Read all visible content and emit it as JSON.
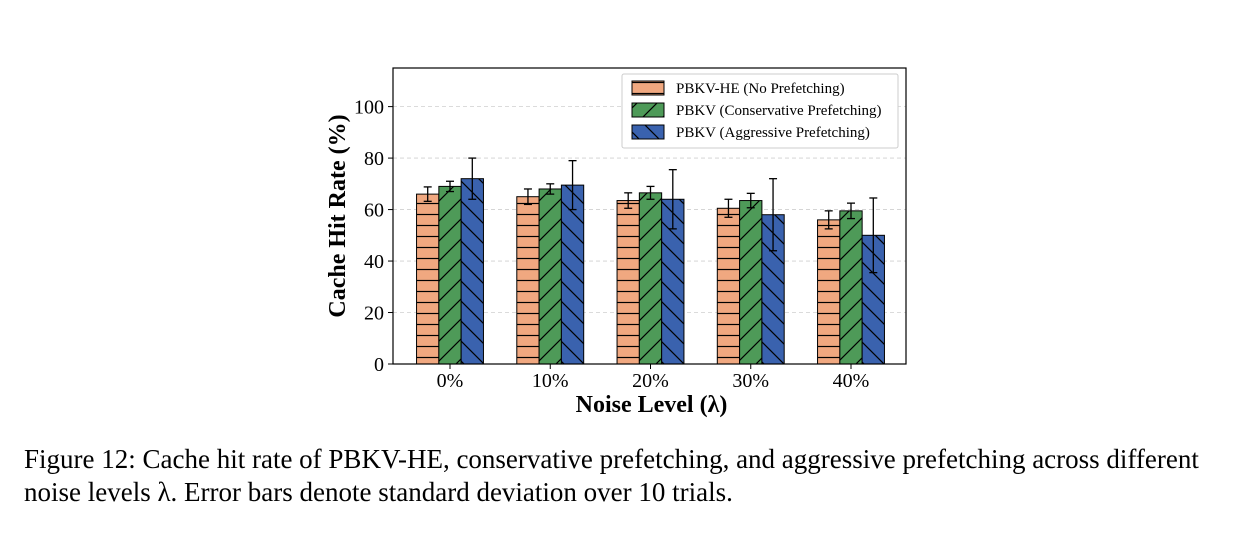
{
  "chart_data": {
    "type": "bar",
    "xlabel": "Noise Level (λ)",
    "ylabel": "Cache Hit Rate (%)",
    "ylim": [
      0,
      115
    ],
    "yticks": [
      0,
      20,
      40,
      60,
      80,
      100
    ],
    "grid": "horizontal dashed",
    "legend_position": "top-right",
    "categories": [
      "0%",
      "10%",
      "20%",
      "30%",
      "40%"
    ],
    "series": [
      {
        "name": "PBKV-HE (No Prefetching)",
        "color": "#f0a880",
        "hatch": "horizontal",
        "values": [
          66.0,
          65.0,
          63.5,
          60.5,
          56.0
        ],
        "errors": [
          2.8,
          3.0,
          3.0,
          3.5,
          3.5
        ]
      },
      {
        "name": "PBKV (Conservative Prefetching)",
        "color": "#4e9a58",
        "hatch": "forward-diagonal",
        "values": [
          69.0,
          68.0,
          66.5,
          63.5,
          59.5
        ],
        "errors": [
          2.0,
          2.0,
          2.5,
          2.8,
          3.0
        ]
      },
      {
        "name": "PBKV (Aggressive Prefetching)",
        "color": "#3a62ae",
        "hatch": "back-diagonal",
        "values": [
          72.0,
          69.5,
          64.0,
          58.0,
          50.0
        ],
        "errors": [
          8.0,
          9.5,
          11.5,
          14.0,
          14.5
        ]
      }
    ]
  },
  "caption": {
    "label": "Figure 12:",
    "text": "Cache hit rate of PBKV-HE, conservative prefetching, and aggressive prefetching across different noise levels λ. Error bars denote standard deviation over 10 trials."
  }
}
